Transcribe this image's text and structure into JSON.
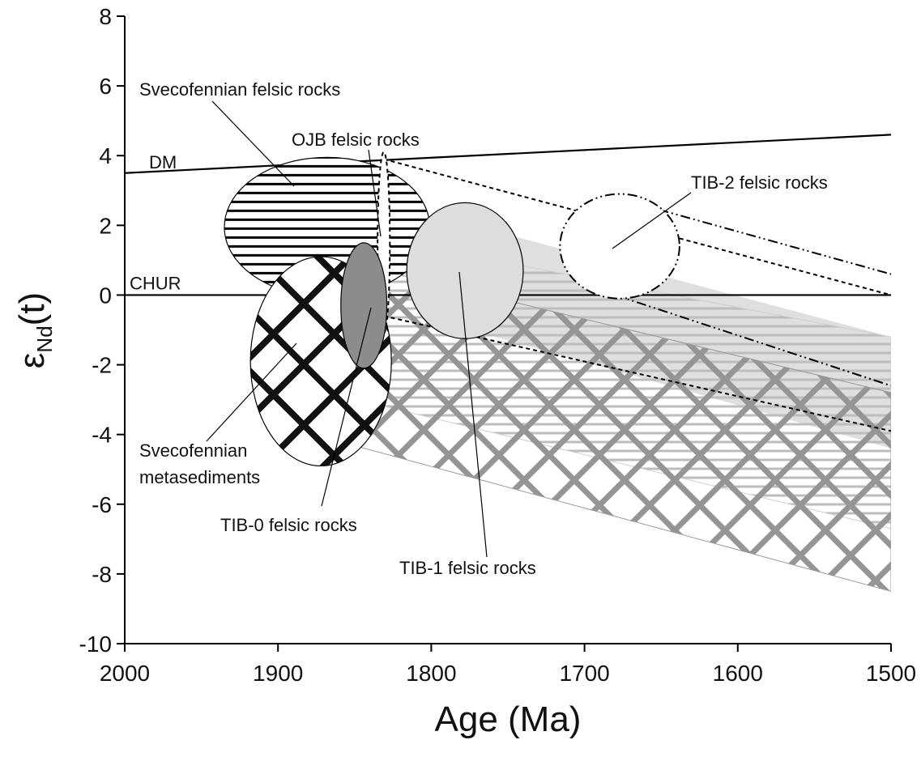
{
  "chart_data": {
    "type": "scatter",
    "title": "",
    "xlabel": "Age (Ma)",
    "ylabel_main": "ε",
    "ylabel_sub": "Nd",
    "ylabel_tail": "(t)",
    "xlim": [
      2000,
      1500
    ],
    "ylim": [
      -10,
      8
    ],
    "x_reversed": true,
    "x_ticks": [
      2000,
      1900,
      1800,
      1700,
      1600,
      1500
    ],
    "y_ticks": [
      8,
      6,
      4,
      2,
      0,
      -2,
      -4,
      -6,
      -8,
      -10
    ],
    "grid": false,
    "reference_lines": [
      {
        "name": "DM",
        "points": [
          [
            2000,
            3.5
          ],
          [
            1500,
            4.6
          ]
        ]
      },
      {
        "name": "CHUR",
        "points": [
          [
            2000,
            0
          ],
          [
            1500,
            0
          ]
        ]
      }
    ],
    "fields": [
      {
        "label": "Svecofennian felsic rocks",
        "pattern": "horizontal-lines",
        "center": [
          1868,
          1.95
        ],
        "radii": [
          67,
          2.0
        ],
        "evolution_band": {
          "from_age": 1830,
          "upper": [
            1.6,
            -1.2
          ],
          "lower": [
            -3.2,
            -6.7
          ],
          "to_age": 1500
        }
      },
      {
        "label": "Svecofennian metasediments",
        "pattern": "crosshatch",
        "center": [
          1872,
          -1.9
        ],
        "radii": [
          46,
          3.0
        ],
        "evolution_band": {
          "from_age": 1860,
          "upper": [
            1.0,
            -2.8
          ],
          "lower": [
            -4.2,
            -8.5
          ],
          "to_age": 1500
        }
      },
      {
        "label": "OJB felsic rocks",
        "pattern": "dashed-outline",
        "center": [
          1831,
          1.5
        ],
        "radii": [
          4,
          2.6
        ],
        "evolution_band": {
          "from_age": 1831,
          "upper": [
            3.9,
            0.0
          ],
          "lower": [
            -0.6,
            -3.9
          ],
          "to_age": 1500
        }
      },
      {
        "label": "TIB-0 felsic rocks",
        "pattern": "dark-gray",
        "center": [
          1844,
          -0.3
        ],
        "radii": [
          15,
          1.8
        ]
      },
      {
        "label": "TIB-1 felsic rocks",
        "pattern": "light-gray",
        "center": [
          1778,
          0.7
        ],
        "radii": [
          38,
          1.95
        ],
        "evolution_band": {
          "from_age": 1790,
          "upper": [
            2.2,
            -1.2
          ],
          "lower": [
            -0.8,
            -4.4
          ],
          "to_age": 1500
        }
      },
      {
        "label": "TIB-2 felsic rocks",
        "pattern": "dash-dot-outline",
        "center": [
          1677,
          1.4
        ],
        "radii": [
          39,
          1.5
        ],
        "evolution_band": {
          "from_age": 1680,
          "upper": [
            2.8,
            0.6
          ],
          "lower": [
            0.0,
            -2.6
          ],
          "to_age": 1500
        }
      }
    ]
  }
}
